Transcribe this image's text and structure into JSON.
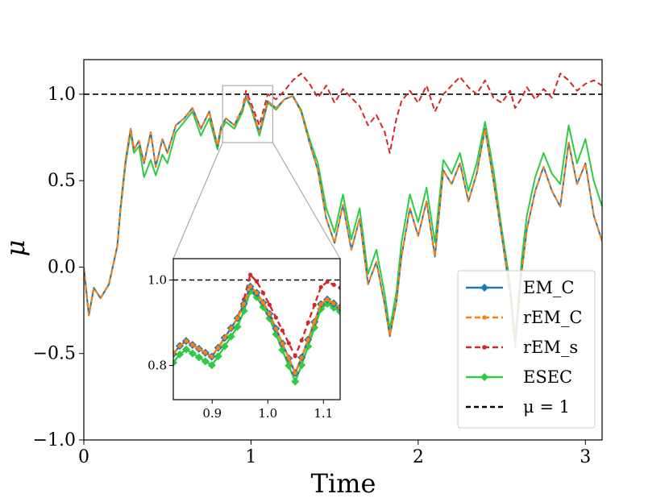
{
  "chart_data": {
    "type": "line",
    "xlabel": "Time",
    "ylabel": "μ",
    "xlim": [
      0,
      3.1
    ],
    "ylim": [
      -1.0,
      1.2
    ],
    "x_ticks": [
      "0",
      "1",
      "2",
      "3"
    ],
    "y_ticks": [
      "−1.0",
      "−0.5",
      "0.0",
      "0.5",
      "1.0"
    ],
    "grid": false,
    "legend_position": "lower-right",
    "legend": [
      "EM_C",
      "rEM_C",
      "rEM_s",
      "ESEC",
      "μ = 1"
    ],
    "reference_line": {
      "name": "μ = 1",
      "y": 1.0,
      "style": "dashed",
      "color": "#000000"
    },
    "series": [
      {
        "name": "EM_C",
        "color": "#1f77b4",
        "style": "solid",
        "marker": "diamond",
        "x": [
          0,
          0.03,
          0.06,
          0.1,
          0.15,
          0.2,
          0.22,
          0.25,
          0.28,
          0.3,
          0.33,
          0.36,
          0.4,
          0.43,
          0.47,
          0.5,
          0.55,
          0.6,
          0.65,
          0.7,
          0.75,
          0.8,
          0.82,
          0.85,
          0.9,
          0.95,
          0.97,
          1.0,
          1.05,
          1.1,
          1.15,
          1.2,
          1.25,
          1.3,
          1.35,
          1.4,
          1.45,
          1.5,
          1.55,
          1.6,
          1.65,
          1.7,
          1.75,
          1.8,
          1.83,
          1.87,
          1.9,
          1.95,
          2.0,
          2.05,
          2.1,
          2.15,
          2.2,
          2.25,
          2.3,
          2.35,
          2.4,
          2.45,
          2.5,
          2.55,
          2.58,
          2.62,
          2.65,
          2.7,
          2.75,
          2.8,
          2.85,
          2.9,
          2.95,
          3.0,
          3.05,
          3.1
        ],
        "y": [
          0.0,
          -0.28,
          -0.12,
          -0.18,
          -0.1,
          0.12,
          0.35,
          0.62,
          0.8,
          0.68,
          0.73,
          0.6,
          0.78,
          0.58,
          0.74,
          0.66,
          0.82,
          0.86,
          0.92,
          0.8,
          0.9,
          0.7,
          0.81,
          0.86,
          0.82,
          0.92,
          0.99,
          0.93,
          0.78,
          0.96,
          0.92,
          0.97,
          0.99,
          0.9,
          0.72,
          0.56,
          0.28,
          0.14,
          0.36,
          0.1,
          0.28,
          -0.1,
          0.03,
          -0.22,
          -0.4,
          -0.2,
          0.06,
          0.34,
          0.18,
          0.38,
          0.06,
          0.56,
          0.48,
          0.6,
          0.38,
          0.54,
          0.8,
          0.5,
          0.18,
          -0.15,
          -0.46,
          -0.02,
          0.22,
          0.44,
          0.58,
          0.44,
          0.35,
          0.72,
          0.48,
          0.6,
          0.3,
          0.15
        ]
      },
      {
        "name": "rEM_C",
        "color": "#ff7f0e",
        "style": "dashed",
        "marker": "point",
        "x": [
          0,
          0.03,
          0.06,
          0.1,
          0.15,
          0.2,
          0.22,
          0.25,
          0.28,
          0.3,
          0.33,
          0.36,
          0.4,
          0.43,
          0.47,
          0.5,
          0.55,
          0.6,
          0.65,
          0.7,
          0.75,
          0.8,
          0.82,
          0.85,
          0.9,
          0.95,
          0.97,
          1.0,
          1.05,
          1.1,
          1.15,
          1.2,
          1.25,
          1.3,
          1.35,
          1.4,
          1.45,
          1.5,
          1.55,
          1.6,
          1.65,
          1.7,
          1.75,
          1.8,
          1.83,
          1.87,
          1.9,
          1.95,
          2.0,
          2.05,
          2.1,
          2.15,
          2.2,
          2.25,
          2.3,
          2.35,
          2.4,
          2.45,
          2.5,
          2.55,
          2.58,
          2.62,
          2.65,
          2.7,
          2.75,
          2.8,
          2.85,
          2.9,
          2.95,
          3.0,
          3.05,
          3.1
        ],
        "y": [
          0.0,
          -0.28,
          -0.12,
          -0.18,
          -0.1,
          0.12,
          0.35,
          0.62,
          0.8,
          0.68,
          0.73,
          0.6,
          0.78,
          0.58,
          0.74,
          0.66,
          0.82,
          0.86,
          0.92,
          0.8,
          0.9,
          0.7,
          0.81,
          0.86,
          0.82,
          0.92,
          0.99,
          0.93,
          0.78,
          0.96,
          0.92,
          0.97,
          0.99,
          0.9,
          0.72,
          0.56,
          0.28,
          0.14,
          0.36,
          0.1,
          0.28,
          -0.1,
          0.03,
          -0.22,
          -0.4,
          -0.2,
          0.06,
          0.34,
          0.18,
          0.38,
          0.06,
          0.56,
          0.48,
          0.6,
          0.38,
          0.54,
          0.8,
          0.5,
          0.18,
          -0.15,
          -0.46,
          -0.02,
          0.22,
          0.44,
          0.58,
          0.44,
          0.35,
          0.72,
          0.48,
          0.6,
          0.3,
          0.15
        ]
      },
      {
        "name": "rEM_s",
        "color": "#d62728",
        "style": "dashed",
        "marker": "point",
        "x": [
          0,
          0.03,
          0.06,
          0.1,
          0.15,
          0.2,
          0.22,
          0.25,
          0.28,
          0.3,
          0.33,
          0.36,
          0.4,
          0.43,
          0.47,
          0.5,
          0.55,
          0.6,
          0.65,
          0.7,
          0.75,
          0.8,
          0.82,
          0.85,
          0.9,
          0.95,
          0.97,
          1.0,
          1.05,
          1.1,
          1.15,
          1.2,
          1.25,
          1.3,
          1.35,
          1.4,
          1.45,
          1.5,
          1.55,
          1.6,
          1.65,
          1.7,
          1.75,
          1.8,
          1.83,
          1.87,
          1.9,
          1.95,
          2.0,
          2.05,
          2.1,
          2.15,
          2.2,
          2.25,
          2.3,
          2.35,
          2.4,
          2.45,
          2.5,
          2.55,
          2.58,
          2.62,
          2.65,
          2.7,
          2.75,
          2.8,
          2.85,
          2.9,
          2.95,
          3.0,
          3.05,
          3.1
        ],
        "y": [
          0.0,
          -0.28,
          -0.12,
          -0.18,
          -0.1,
          0.12,
          0.35,
          0.62,
          0.8,
          0.68,
          0.73,
          0.6,
          0.78,
          0.58,
          0.74,
          0.66,
          0.82,
          0.86,
          0.92,
          0.8,
          0.9,
          0.7,
          0.81,
          0.86,
          0.82,
          0.92,
          1.02,
          0.95,
          0.82,
          1.0,
          0.97,
          1.02,
          1.08,
          1.12,
          1.06,
          0.98,
          1.05,
          0.95,
          1.03,
          0.98,
          0.93,
          0.82,
          0.88,
          0.78,
          0.66,
          0.86,
          0.96,
          1.02,
          0.95,
          1.05,
          0.9,
          1.0,
          1.05,
          1.1,
          1.04,
          1.0,
          1.08,
          0.98,
          0.95,
          1.02,
          0.92,
          0.98,
          1.04,
          0.97,
          1.03,
          0.98,
          1.12,
          1.08,
          1.02,
          1.06,
          1.08,
          1.05
        ]
      },
      {
        "name": "ESEC",
        "color": "#2ecc40",
        "style": "solid",
        "marker": "diamond",
        "x": [
          0,
          0.03,
          0.06,
          0.1,
          0.15,
          0.2,
          0.22,
          0.25,
          0.28,
          0.3,
          0.33,
          0.36,
          0.4,
          0.43,
          0.47,
          0.5,
          0.55,
          0.6,
          0.65,
          0.7,
          0.75,
          0.8,
          0.82,
          0.85,
          0.9,
          0.95,
          0.97,
          1.0,
          1.05,
          1.1,
          1.15,
          1.2,
          1.25,
          1.3,
          1.35,
          1.4,
          1.45,
          1.5,
          1.55,
          1.6,
          1.65,
          1.7,
          1.75,
          1.8,
          1.83,
          1.87,
          1.9,
          1.95,
          2.0,
          2.05,
          2.1,
          2.15,
          2.2,
          2.25,
          2.3,
          2.35,
          2.4,
          2.45,
          2.5,
          2.55,
          2.58,
          2.62,
          2.65,
          2.7,
          2.75,
          2.8,
          2.85,
          2.9,
          2.95,
          3.0,
          3.05,
          3.1
        ],
        "y": [
          0.0,
          -0.28,
          -0.12,
          -0.18,
          -0.1,
          0.12,
          0.33,
          0.6,
          0.78,
          0.66,
          0.7,
          0.52,
          0.62,
          0.53,
          0.65,
          0.6,
          0.78,
          0.84,
          0.9,
          0.76,
          0.86,
          0.68,
          0.79,
          0.84,
          0.8,
          0.9,
          0.98,
          0.92,
          0.76,
          0.95,
          0.91,
          0.97,
          0.99,
          0.91,
          0.74,
          0.6,
          0.34,
          0.2,
          0.42,
          0.16,
          0.34,
          -0.04,
          0.1,
          -0.16,
          -0.36,
          -0.14,
          0.14,
          0.42,
          0.26,
          0.46,
          0.14,
          0.62,
          0.54,
          0.66,
          0.44,
          0.6,
          0.84,
          0.56,
          0.22,
          -0.1,
          -0.42,
          0.05,
          0.3,
          0.52,
          0.66,
          0.54,
          0.48,
          0.82,
          0.6,
          0.74,
          0.5,
          0.35
        ]
      }
    ],
    "inset": {
      "xlim": [
        0.83,
        1.13
      ],
      "ylim": [
        0.72,
        1.05
      ],
      "x_ticks": [
        "0.9",
        "1.0",
        "1.1"
      ],
      "y_ticks": [
        "0.8",
        "1.0"
      ],
      "zoom_box": {
        "x": [
          0.83,
          1.13
        ],
        "y": [
          0.72,
          1.05
        ]
      }
    }
  }
}
